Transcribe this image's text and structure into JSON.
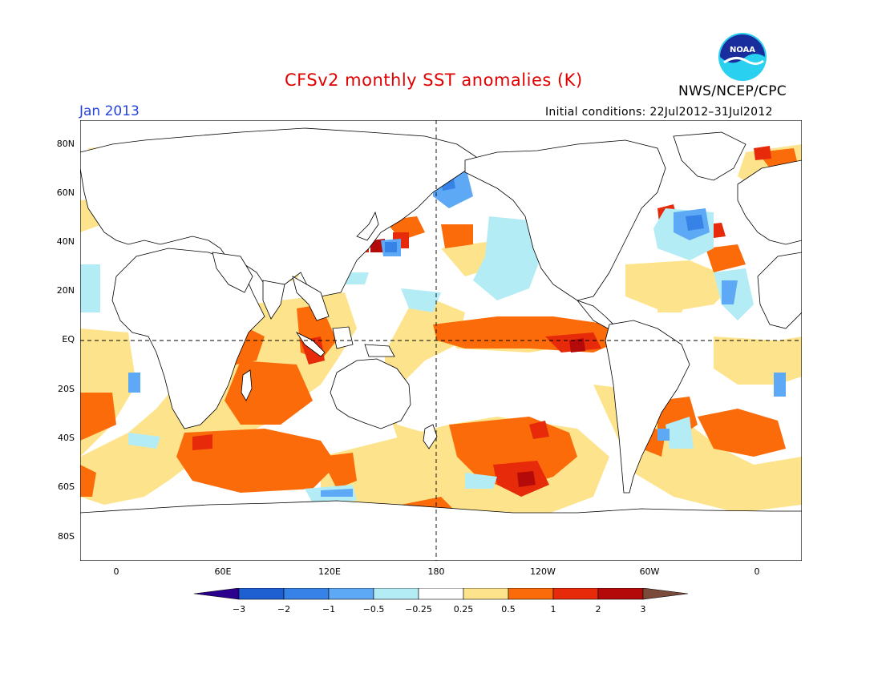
{
  "header": {
    "title": "CFSv2 monthly SST anomalies (K)",
    "agency": "NWS/NCEP/CPC",
    "month": "Jan 2013",
    "initial_conditions": "Initial conditions: 22Jul2012–31Jul2012",
    "logo_text": "NOAA"
  },
  "map": {
    "lat_labels": [
      "80N",
      "60N",
      "40N",
      "20N",
      "EQ",
      "20S",
      "40S",
      "60S",
      "80S"
    ],
    "lon_labels": [
      "0",
      "60E",
      "120E",
      "180",
      "120W",
      "60W",
      "0"
    ],
    "grid": "dashed lines at equator and 180"
  },
  "colorbar": {
    "labels": [
      "−3",
      "−2",
      "−1",
      "−0.5",
      "−0.25",
      "0.25",
      "0.5",
      "1",
      "2",
      "3"
    ],
    "colors": [
      "#2b008f",
      "#1e5fd2",
      "#3782e6",
      "#5ea9f5",
      "#b4ecf5",
      "#ffffff",
      "#fde48c",
      "#fb6b0a",
      "#e62a0a",
      "#b40a0a",
      "#7a4a3a"
    ]
  },
  "colors": {
    "land": "#ffffff",
    "coast": "#000000",
    "warm_light": "#fde48c",
    "warm_mid": "#fb6b0a",
    "warm_high": "#e62a0a",
    "warm_max": "#b40a0a",
    "cool_light": "#b4ecf5",
    "cool_mid": "#5ea9f5",
    "cool_high": "#3782e6"
  }
}
